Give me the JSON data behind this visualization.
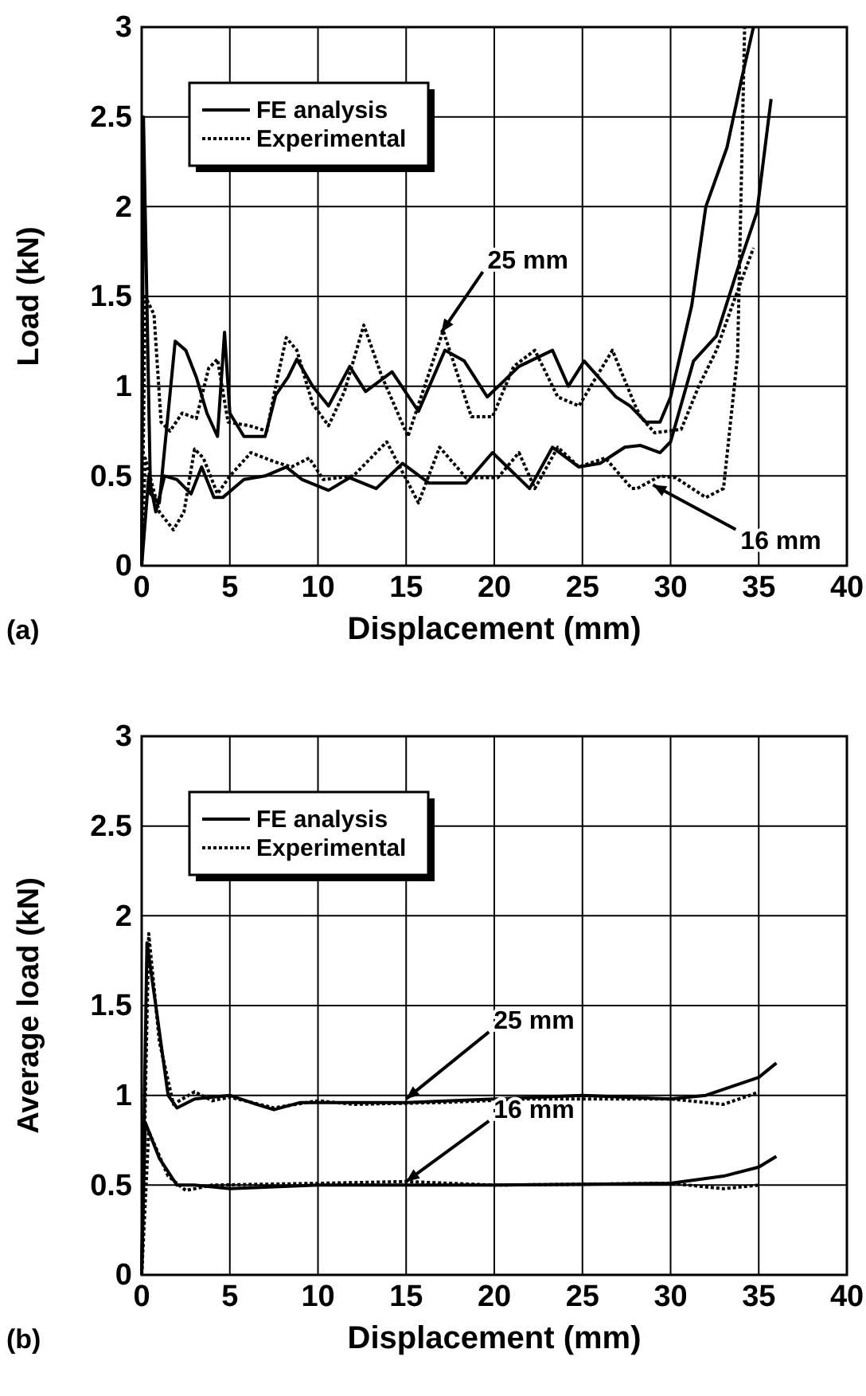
{
  "chart_data": [
    {
      "type": "line",
      "xlabel": "Displacement (mm)",
      "ylabel": "Load (kN)",
      "xlim": [
        0,
        40
      ],
      "ylim": [
        0,
        3
      ],
      "xticks": [
        0,
        5,
        10,
        15,
        20,
        25,
        30,
        35,
        40
      ],
      "yticks": [
        0,
        0.5,
        1,
        1.5,
        2,
        2.5,
        3
      ],
      "grid": true,
      "legend": "top left",
      "series": [
        {
          "name": "FE analysis",
          "color": "#000000",
          "line_style": "solid",
          "x": [
            0,
            0.1,
            0.5,
            1,
            1.9,
            2.5,
            3.1,
            3.7,
            4.3,
            4.7,
            5,
            5.8,
            7,
            7.6,
            8.3,
            8.8,
            9.7,
            10.6,
            11.8,
            12.7,
            14.2,
            15.7,
            17.2,
            18.3,
            19.6,
            21.4,
            23.3,
            24.2,
            25.1,
            26.9,
            27.7,
            28.6,
            29.4,
            30,
            31.2,
            32,
            33.2,
            34,
            34.7
          ],
          "values": [
            0,
            2.5,
            0.4,
            0.35,
            1.25,
            1.2,
            1.05,
            0.85,
            0.72,
            1.3,
            0.85,
            0.72,
            0.72,
            0.95,
            1.05,
            1.15,
            1,
            0.89,
            1.11,
            0.97,
            1.08,
            0.86,
            1.2,
            1.14,
            0.94,
            1.11,
            1.2,
            1,
            1.14,
            0.94,
            0.89,
            0.8,
            0.8,
            0.94,
            1.45,
            2,
            2.33,
            2.7,
            3
          ]
        },
        {
          "color": "#000000",
          "line_style": "dotted",
          "x": [
            0,
            0.2,
            0.7,
            1.1,
            1.6,
            2.3,
            3.1,
            3.8,
            4.3,
            4.9,
            6.1,
            7.1,
            7.6,
            8.2,
            8.8,
            9.7,
            10.6,
            11.5,
            12.6,
            13.6,
            15.1,
            17.1,
            18.7,
            19.9,
            21.1,
            22.3,
            23.6,
            24.8,
            26.7,
            28,
            28.3,
            29.1,
            30.6,
            31.6,
            32.6,
            33.5,
            34.7
          ],
          "values": [
            0,
            1.5,
            1.4,
            0.8,
            0.75,
            0.85,
            0.82,
            1.1,
            1.15,
            0.8,
            0.78,
            0.75,
            1,
            1.27,
            1.2,
            0.9,
            0.78,
            0.97,
            1.34,
            1.06,
            0.72,
            1.31,
            0.83,
            0.83,
            1.11,
            1.2,
            0.94,
            0.89,
            1.2,
            0.89,
            0.83,
            0.74,
            0.76,
            1,
            1.2,
            1.45,
            1.77
          ]
        },
        {
          "color": "#000000",
          "line_style": "solid",
          "x": [
            0,
            0.4,
            0.8,
            1.3,
            2,
            2.8,
            3.4,
            4.1,
            4.6,
            5.8,
            7,
            8.2,
            9.1,
            10.6,
            11.8,
            13.3,
            14.8,
            16.3,
            18.4,
            19.9,
            22,
            23.3,
            24.8,
            26,
            27.4,
            28.3,
            29.4,
            30,
            31.3,
            32.6,
            33.8,
            34.9,
            35.7
          ],
          "values": [
            0,
            0.5,
            0.3,
            0.5,
            0.48,
            0.4,
            0.55,
            0.38,
            0.38,
            0.48,
            0.5,
            0.55,
            0.48,
            0.42,
            0.49,
            0.43,
            0.57,
            0.46,
            0.46,
            0.63,
            0.43,
            0.66,
            0.55,
            0.57,
            0.66,
            0.67,
            0.63,
            0.69,
            1.14,
            1.28,
            1.65,
            1.97,
            2.6
          ]
        },
        {
          "name": "Experimental",
          "color": "#000000",
          "line_style": "dotted",
          "x": [
            0,
            0.2,
            1,
            1.8,
            2.4,
            3,
            3.5,
            4.3,
            5,
            6.2,
            7.5,
            8.5,
            9.5,
            10.3,
            12,
            13.9,
            15.7,
            16.9,
            18.4,
            20.2,
            21.4,
            22.3,
            23.6,
            24.8,
            26.3,
            27.8,
            28.1,
            29.4,
            30.3,
            32,
            33,
            33.8,
            34.2
          ],
          "values": [
            0,
            0.6,
            0.3,
            0.2,
            0.3,
            0.65,
            0.6,
            0.4,
            0.5,
            0.63,
            0.58,
            0.55,
            0.6,
            0.48,
            0.5,
            0.69,
            0.35,
            0.66,
            0.49,
            0.49,
            0.63,
            0.43,
            0.66,
            0.55,
            0.6,
            0.43,
            0.43,
            0.5,
            0.49,
            0.38,
            0.43,
            1.17,
            3
          ]
        }
      ],
      "annotations": [
        {
          "text": "25 mm",
          "x": 17,
          "y": 1.3
        },
        {
          "text": "16 mm",
          "x": 29,
          "y": 0.45
        },
        "(a)"
      ]
    },
    {
      "type": "line",
      "xlabel": "Displacement (mm)",
      "ylabel": "Average load (kN)",
      "xlim": [
        0,
        40
      ],
      "ylim": [
        0,
        3
      ],
      "xticks": [
        0,
        5,
        10,
        15,
        20,
        25,
        30,
        35,
        40
      ],
      "yticks": [
        0,
        0.5,
        1,
        1.5,
        2,
        2.5,
        3
      ],
      "grid": true,
      "legend": "top left",
      "series": [
        {
          "name": "FE analysis",
          "color": "#000000",
          "line_style": "solid",
          "x": [
            0,
            0.3,
            0.8,
            1.5,
            2,
            3,
            5,
            6.5,
            7.5,
            9,
            15,
            20,
            25,
            30,
            32,
            33.5,
            35,
            36
          ],
          "values": [
            0,
            1.85,
            1.5,
            1,
            0.93,
            0.98,
            1,
            0.95,
            0.92,
            0.96,
            0.96,
            0.98,
            1,
            0.98,
            1,
            1.05,
            1.1,
            1.18
          ]
        },
        {
          "color": "#000000",
          "line_style": "dotted",
          "x": [
            0,
            0.4,
            1,
            1.8,
            3,
            4,
            5,
            7.5,
            10,
            12,
            17,
            22,
            30,
            33,
            34.5,
            35
          ],
          "values": [
            0,
            1.9,
            1.3,
            0.95,
            1.02,
            0.97,
            0.99,
            0.93,
            0.97,
            0.95,
            0.96,
            0.98,
            0.98,
            0.95,
            1,
            1.02
          ]
        },
        {
          "color": "#000000",
          "line_style": "solid",
          "x": [
            0,
            0.2,
            1,
            2,
            3,
            5,
            10,
            20,
            30,
            33,
            35,
            36
          ],
          "values": [
            0,
            0.85,
            0.65,
            0.5,
            0.5,
            0.48,
            0.5,
            0.5,
            0.51,
            0.55,
            0.6,
            0.66
          ]
        },
        {
          "name": "Experimental",
          "color": "#000000",
          "line_style": "dotted",
          "x": [
            0,
            0.4,
            1.5,
            2.5,
            4,
            10,
            15,
            20,
            30,
            33,
            35
          ],
          "values": [
            0,
            0.8,
            0.55,
            0.47,
            0.5,
            0.51,
            0.52,
            0.5,
            0.51,
            0.48,
            0.5
          ]
        }
      ],
      "annotations": [
        {
          "text": "25 mm",
          "x": 15,
          "y": 0.98
        },
        {
          "text": "16 mm",
          "x": 15,
          "y": 0.52
        },
        "(b)"
      ]
    }
  ]
}
